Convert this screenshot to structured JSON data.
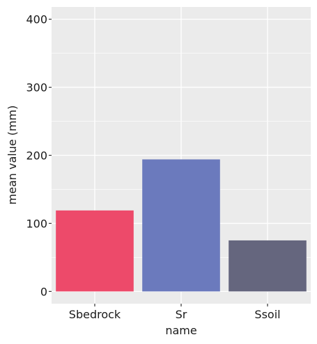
{
  "chart_data": {
    "type": "bar",
    "title": "",
    "xlabel": "name",
    "ylabel": "mean value (mm)",
    "categories": [
      "Sbedrock",
      "Sr",
      "Ssoil"
    ],
    "values": [
      119,
      194,
      75
    ],
    "colors": [
      "#ED4A6A",
      "#6B7ABD",
      "#65667E"
    ],
    "ylim": [
      -18,
      418
    ],
    "yticks": [
      0,
      100,
      200,
      300,
      400
    ],
    "ytick_labels": [
      "0",
      "100",
      "200",
      "300",
      "400"
    ],
    "grid": true,
    "panel_background": "#EBEBEB",
    "grid_color": "#FFFFFF"
  }
}
